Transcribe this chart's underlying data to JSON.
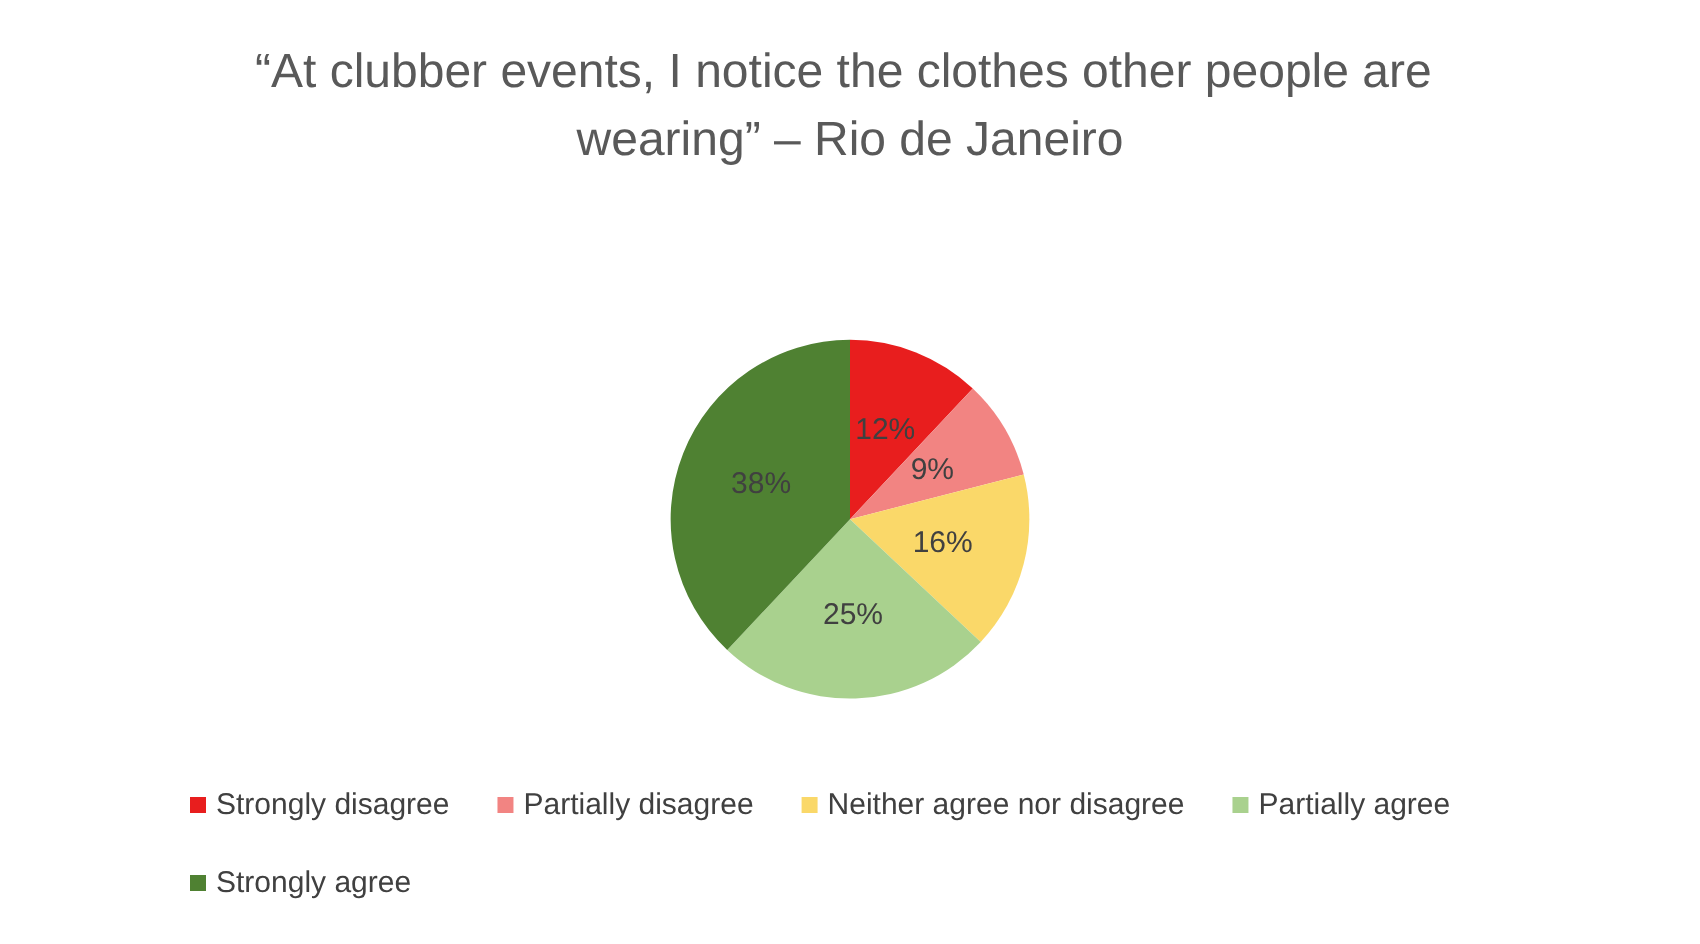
{
  "chart_data": {
    "type": "pie",
    "title": "“At clubber events, I notice the clothes other people are wearing” – Rio de Janeiro",
    "categories": [
      "Strongly disagree",
      "Partially disagree",
      "Neither agree nor disagree",
      "Partially agree",
      "Strongly agree"
    ],
    "values": [
      12,
      9,
      16,
      25,
      38
    ],
    "value_labels": [
      "12%",
      "9%",
      "16%",
      "25%",
      "38%"
    ],
    "colors": [
      "#e81e1e",
      "#f28482",
      "#fad869",
      "#a9d18e",
      "#4f8132"
    ],
    "legend": "bottom"
  }
}
